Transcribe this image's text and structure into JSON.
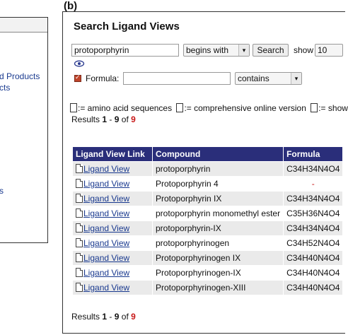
{
  "panel_label": "(b)",
  "left_panel": {
    "links": [
      "d Products",
      "cts",
      "s"
    ]
  },
  "header": {
    "title": "Search Ligand Views"
  },
  "search": {
    "query": "protoporphyrin",
    "match_mode": "begins with",
    "button_label": "Search",
    "show_label": "show",
    "show_count": "10"
  },
  "formula_filter": {
    "label": "Formula:",
    "value": "",
    "match_mode": "contains",
    "checked": true
  },
  "legend": {
    "amino": ":= amino acid sequences",
    "online": ":= comprehensive online version",
    "other": ":= show"
  },
  "results": {
    "prefix": "Results",
    "from": "1",
    "dash": "-",
    "to": "9",
    "of": "of",
    "total": "9"
  },
  "table": {
    "headers": [
      "Ligand View Link",
      "Compound",
      "Formula"
    ],
    "rows": [
      {
        "link": "Ligand View",
        "compound": "protoporphyrin",
        "formula": "C34H34N4O4"
      },
      {
        "link": "Ligand View",
        "compound": "Protoporphyrin 4",
        "formula": "-"
      },
      {
        "link": "Ligand View",
        "compound": "Protoporphyrin IX",
        "formula": "C34H34N4O4"
      },
      {
        "link": "Ligand View",
        "compound": "protoporphyrin monomethyl ester",
        "formula": "C35H36N4O4"
      },
      {
        "link": "Ligand View",
        "compound": "protoporphyrin-IX",
        "formula": "C34H34N4O4"
      },
      {
        "link": "Ligand View",
        "compound": "protoporphyrinogen",
        "formula": "C34H52N4O4"
      },
      {
        "link": "Ligand View",
        "compound": "Protoporphyrinogen IX",
        "formula": "C34H40N4O4"
      },
      {
        "link": "Ligand View",
        "compound": "Protoporphyrinogen-IX",
        "formula": "C34H40N4O4"
      },
      {
        "link": "Ligand View",
        "compound": "Protoporphyrinogen-XIII",
        "formula": "C34H40N4O4"
      }
    ]
  },
  "colors": {
    "header_bg": "#2a2e7a",
    "link": "#1a3a8f",
    "accent_red": "#c81818"
  }
}
